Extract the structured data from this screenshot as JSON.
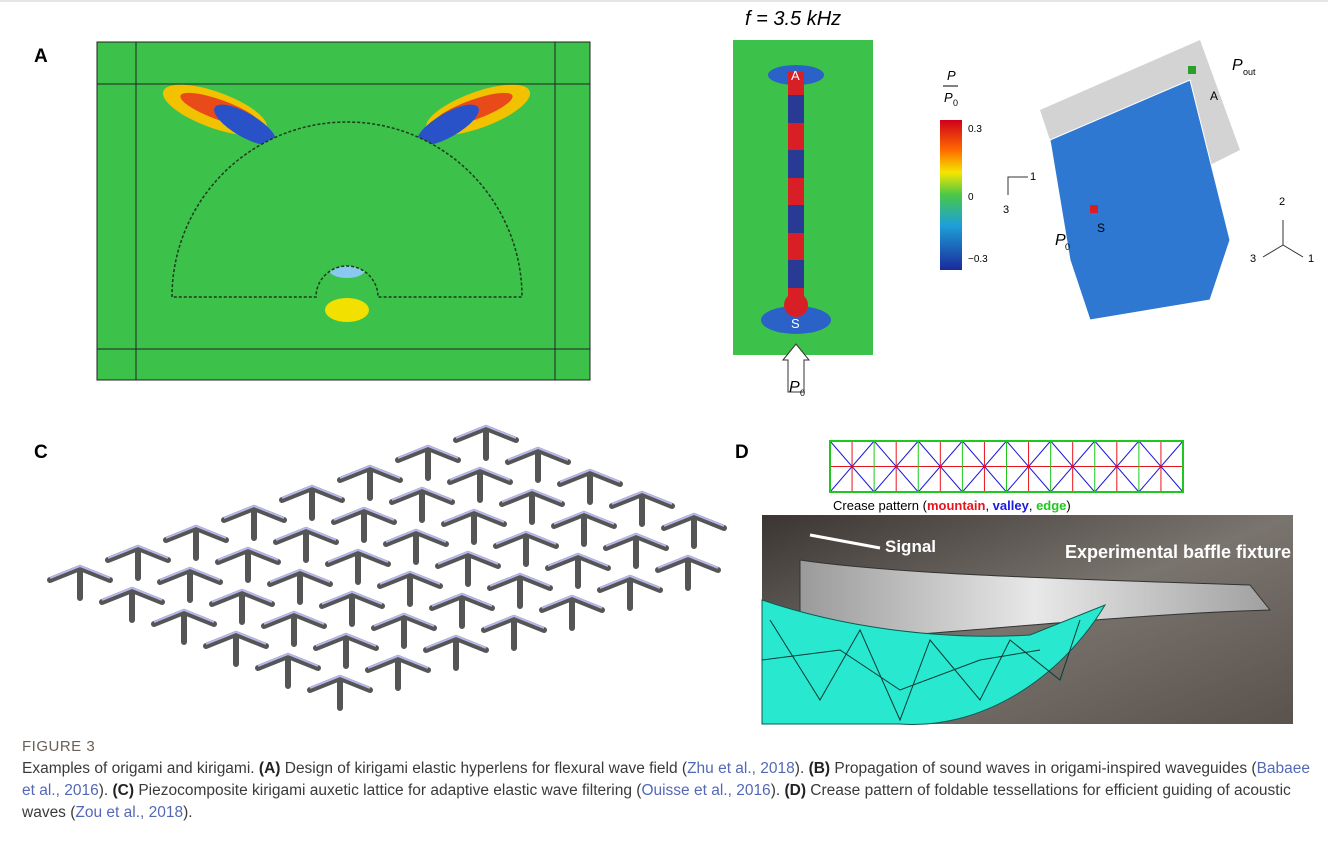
{
  "panels": [
    "A",
    "B",
    "C",
    "D"
  ],
  "panel_b": {
    "frequency": "f = 3.5 kHz",
    "colorbar_num": "P",
    "colorbar_den": "P",
    "colorbar_den_sub": "0",
    "colorbar_ticks": [
      "0.3",
      "0",
      "−0.3"
    ],
    "end_top": "A",
    "end_bottom": "S",
    "input": "P",
    "input_sub": "0",
    "axes_left": [
      "1",
      "3"
    ],
    "cube_in": "P",
    "cube_in_sub": "0",
    "cube_out": "P",
    "cube_out_sub": "out",
    "cube_s": "S",
    "cube_a": "A",
    "axes_right": [
      "2",
      "3",
      "1"
    ]
  },
  "panel_d": {
    "crease": [
      {
        "text": "Crease pattern (",
        "color": "#000000"
      },
      {
        "text": "mountain",
        "color": "#e8141c"
      },
      {
        "text": ", ",
        "color": "#000000"
      },
      {
        "text": "valley",
        "color": "#1a1adc"
      },
      {
        "text": ", ",
        "color": "#000000"
      },
      {
        "text": "edge",
        "color": "#1ec81e"
      },
      {
        "text": ")",
        "color": "#000000"
      }
    ],
    "signal": "Signal",
    "fixture": "Experimental baffle fixture"
  },
  "caption": {
    "label": "FIGURE 3",
    "segments": [
      {
        "text": "Examples of origami and kirigami. ",
        "style": "plain"
      },
      {
        "text": "(A)",
        "style": "bold"
      },
      {
        "text": " Design of kirigami elastic hyperlens for flexural wave field (",
        "style": "plain"
      },
      {
        "text": "Zhu et al., 2018",
        "style": "link"
      },
      {
        "text": "). ",
        "style": "plain"
      },
      {
        "text": "(B)",
        "style": "bold"
      },
      {
        "text": " Propagation of sound waves in origami-inspired waveguides (",
        "style": "plain"
      },
      {
        "text": "Babaee et al., 2016",
        "style": "link"
      },
      {
        "text": "). ",
        "style": "plain"
      },
      {
        "text": "(C)",
        "style": "bold"
      },
      {
        "text": " Piezocomposite kirigami auxetic lattice for adaptive elastic wave filtering (",
        "style": "plain"
      },
      {
        "text": "Ouisse et al., 2016",
        "style": "link"
      },
      {
        "text": "). ",
        "style": "plain"
      },
      {
        "text": "(D)",
        "style": "bold"
      },
      {
        "text": " Crease pattern of foldable tessellations for efficient guiding of acoustic waves (",
        "style": "plain"
      },
      {
        "text": "Zou et al., 2018",
        "style": "link"
      },
      {
        "text": ").",
        "style": "plain"
      }
    ]
  }
}
